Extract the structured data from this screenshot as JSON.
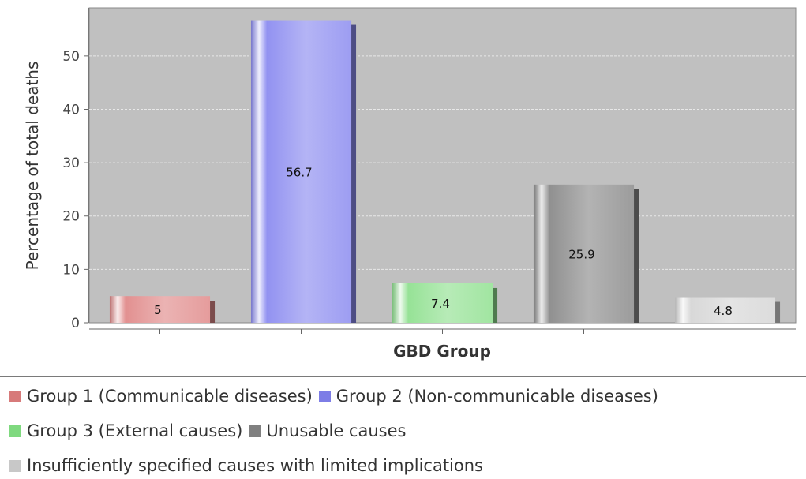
{
  "chart_data": {
    "type": "bar",
    "title": "",
    "xlabel": "GBD Group",
    "ylabel": "Percentage of total deaths",
    "ylim": [
      0,
      59
    ],
    "yticks": [
      0,
      10,
      20,
      30,
      40,
      50
    ],
    "grid": true,
    "legend_position": "bottom",
    "plot_background": "#c0c0c0",
    "series": [
      {
        "name": "Group 1 (Communicable diseases)",
        "value": 5,
        "label": "5",
        "color": "#e08a8a"
      },
      {
        "name": "Group 2 (Non-communicable diseases)",
        "value": 56.7,
        "label": "56.7",
        "color": "#8c8cf0"
      },
      {
        "name": "Group 3 (External causes)",
        "value": 7.4,
        "label": "7.4",
        "color": "#90e090"
      },
      {
        "name": "Unusable causes",
        "value": 25.9,
        "label": "25.9",
        "color": "#8a8a8a"
      },
      {
        "name": "Insufficiently specified causes with limited implications",
        "value": 4.8,
        "label": "4.8",
        "color": "#d6d6d6"
      }
    ]
  }
}
